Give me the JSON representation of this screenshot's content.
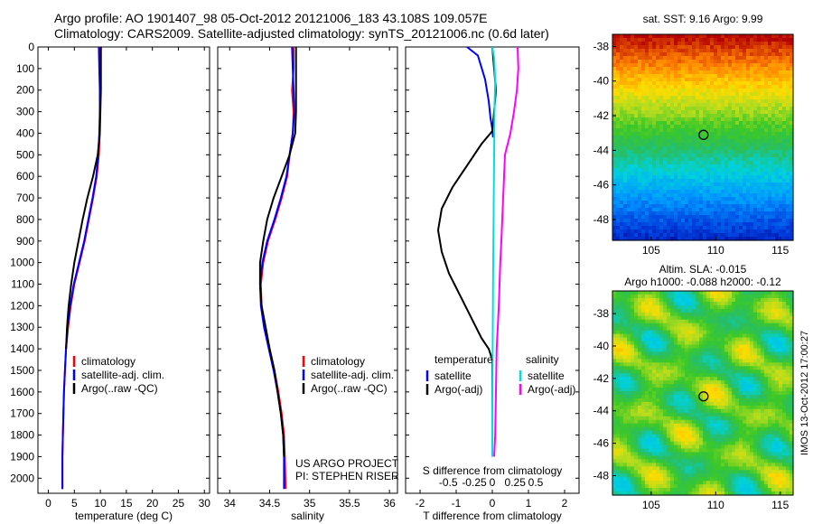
{
  "header": {
    "line1": "Argo profile: AO 1901407_98 05-Oct-2012 20121006_183 43.108S 109.057E",
    "line2": "Climatology: CARS2009. Satellite-adjusted climatology: synTS_20121006.nc (0.6d later)"
  },
  "side_label": "IMOS 13-Oct-2012 17:00:27",
  "credit": {
    "line1": "US ARGO PROJECT",
    "line2": "PI: STEPHEN RISER"
  },
  "colors": {
    "climatology": "#ff0000",
    "satellite": "#0000ff",
    "argo": "#000000",
    "satellite_s": "#00e0e0",
    "argo_s": "#ff00ff"
  },
  "chart_data": [
    {
      "type": "line",
      "xlabel": "temperature (deg C)",
      "ylabel": "",
      "xlim": [
        -2,
        31
      ],
      "ylim": [
        2070,
        0
      ],
      "xticks": [
        0,
        5,
        10,
        15,
        20,
        25,
        30
      ],
      "yticks": [
        0,
        100,
        200,
        300,
        400,
        500,
        600,
        700,
        800,
        900,
        1000,
        1100,
        1200,
        1300,
        1400,
        1500,
        1600,
        1700,
        1800,
        1900,
        2000
      ],
      "legend": {
        "placement": "lower-middle",
        "entries": [
          "climatology",
          "satellite-adj. clim.",
          "Argo(..raw -QC)"
        ]
      },
      "series": [
        {
          "name": "climatology",
          "color": "#ff0000",
          "x": [
            10.1,
            10.0,
            10.0,
            9.9,
            9.9,
            9.7,
            9.3,
            8.6,
            7.8,
            7.0,
            6.0,
            5.0,
            4.3,
            3.8,
            3.4,
            3.2,
            3.0,
            2.9,
            2.8,
            2.7,
            2.7
          ],
          "y": [
            0,
            100,
            200,
            300,
            400,
            500,
            600,
            700,
            800,
            900,
            1000,
            1100,
            1200,
            1300,
            1400,
            1500,
            1600,
            1700,
            1800,
            1900,
            2050
          ]
        },
        {
          "name": "satellite-adj. clim.",
          "color": "#0000ff",
          "x": [
            9.7,
            9.8,
            9.9,
            9.9,
            9.8,
            9.6,
            9.2,
            8.5,
            7.7,
            6.9,
            5.9,
            4.9,
            4.2,
            3.7,
            3.4,
            3.2,
            3.0,
            2.9,
            2.8,
            2.7,
            2.7
          ],
          "y": [
            0,
            100,
            200,
            300,
            400,
            500,
            600,
            700,
            800,
            900,
            1000,
            1100,
            1200,
            1300,
            1400,
            1500,
            1600,
            1700,
            1800,
            1900,
            2050
          ]
        },
        {
          "name": "Argo(..raw -QC)",
          "color": "#000000",
          "x": [
            10.1,
            10.1,
            10.1,
            10.0,
            9.9,
            9.5,
            8.6,
            7.5,
            6.6,
            5.8,
            5.0,
            4.4,
            3.9,
            3.6,
            3.4
          ],
          "y": [
            0,
            100,
            200,
            300,
            400,
            500,
            600,
            700,
            800,
            900,
            1000,
            1100,
            1200,
            1300,
            1400
          ]
        }
      ]
    },
    {
      "type": "line",
      "xlabel": "salinity",
      "ylabel": "",
      "xlim": [
        33.85,
        36.1
      ],
      "ylim": [
        2070,
        0
      ],
      "xticks": [
        34,
        34.5,
        35,
        35.5,
        36
      ],
      "legend": {
        "placement": "lower-middle",
        "entries": [
          "climatology",
          "satellite-adj. clim.",
          "Argo(..raw -QC)"
        ]
      },
      "series": [
        {
          "name": "climatology",
          "color": "#ff0000",
          "x": [
            34.8,
            34.8,
            34.78,
            34.8,
            34.79,
            34.75,
            34.72,
            34.65,
            34.57,
            34.48,
            34.42,
            34.39,
            34.4,
            34.44,
            34.5,
            34.56,
            34.61,
            34.65,
            34.68,
            34.69,
            34.7
          ],
          "y": [
            0,
            100,
            200,
            300,
            400,
            500,
            600,
            700,
            800,
            900,
            1000,
            1100,
            1200,
            1300,
            1400,
            1500,
            1600,
            1700,
            1800,
            1900,
            2050
          ]
        },
        {
          "name": "satellite-adj. clim.",
          "color": "#0000ff",
          "x": [
            34.78,
            34.79,
            34.8,
            34.81,
            34.79,
            34.75,
            34.71,
            34.64,
            34.56,
            34.47,
            34.41,
            34.38,
            34.39,
            34.43,
            34.49,
            34.55,
            34.6,
            34.64,
            34.67,
            34.68,
            34.68
          ],
          "y": [
            0,
            100,
            200,
            300,
            400,
            500,
            600,
            700,
            800,
            900,
            1000,
            1100,
            1200,
            1300,
            1400,
            1500,
            1600,
            1700,
            1800,
            1900,
            2050
          ]
        },
        {
          "name": "Argo(..raw -QC)",
          "color": "#000000",
          "x": [
            34.83,
            34.83,
            34.83,
            34.83,
            34.82,
            34.75,
            34.65,
            34.55,
            34.47,
            34.42,
            34.38,
            34.38,
            34.4,
            34.45,
            34.5,
            34.56,
            34.6,
            34.64,
            34.67,
            34.68
          ],
          "y": [
            0,
            100,
            200,
            300,
            400,
            500,
            600,
            700,
            800,
            900,
            1000,
            1100,
            1200,
            1300,
            1400,
            1500,
            1600,
            1700,
            1800,
            1900
          ]
        }
      ]
    },
    {
      "type": "line",
      "xlabel": "T difference from climatology",
      "title": "S difference from climatology",
      "xlim": [
        -2.4,
        2.4
      ],
      "ylim": [
        2070,
        0
      ],
      "xticks_T": [
        -2,
        -1,
        0,
        1,
        2
      ],
      "xticks_S": [
        "-0.5",
        "-0.25",
        "0",
        "0.25",
        "0.5"
      ],
      "legend": {
        "placement": "lower-middle",
        "groups": [
          {
            "label": "temperature",
            "entries": [
              "satellite",
              "Argo(-adj)"
            ]
          },
          {
            "label": "salinity",
            "entries": [
              "satellite",
              "Argo(-adj)"
            ]
          }
        ]
      },
      "series": [
        {
          "name": "temperature satellite",
          "color": "#0000ff",
          "x": [
            -0.7,
            -0.4,
            -0.2,
            -0.1,
            -0.05,
            0,
            0.02
          ],
          "y": [
            0,
            40,
            150,
            250,
            330,
            380,
            420
          ]
        },
        {
          "name": "temperature Argo(-adj)",
          "color": "#000000",
          "x": [
            0,
            0.05,
            0.1,
            0.05,
            0,
            -0.3,
            -0.7,
            -1.1,
            -1.4,
            -1.5,
            -1.4,
            -1.2,
            -0.9,
            -0.6,
            -0.3,
            -0.1,
            0,
            0,
            0,
            0
          ],
          "y": [
            0,
            100,
            200,
            300,
            390,
            450,
            550,
            650,
            750,
            850,
            950,
            1050,
            1150,
            1250,
            1350,
            1400,
            1450,
            1600,
            1800,
            1900
          ]
        },
        {
          "name": "salinity satellite",
          "color": "#00e0e0",
          "x": [
            0,
            0.05,
            0.08,
            0.06,
            0.05,
            0.04,
            0.03,
            0.02,
            0.01,
            0,
            0
          ],
          "y": [
            0,
            50,
            150,
            300,
            500,
            700,
            900,
            1100,
            1400,
            1700,
            1900
          ]
        },
        {
          "name": "salinity Argo(-adj)",
          "color": "#ff00ff",
          "x": [
            0.7,
            0.72,
            0.68,
            0.6,
            0.5,
            0.35,
            0.3,
            0.25,
            0.22,
            0.2,
            0.18,
            0.15,
            0.12,
            0.1,
            0.08,
            0.05
          ],
          "y": [
            0,
            100,
            200,
            300,
            400,
            500,
            700,
            900,
            1000,
            1100,
            1200,
            1300,
            1400,
            1600,
            1800,
            1900
          ]
        }
      ]
    },
    {
      "type": "heatmap",
      "title": "sat. SST: 9.16  Argo: 9.99",
      "xlim": [
        102,
        116
      ],
      "ylim": [
        -49.2,
        -37.3
      ],
      "xticks": [
        105,
        110,
        115
      ],
      "yticks": [
        -38,
        -40,
        -42,
        -44,
        -46,
        -48
      ],
      "marker": {
        "lon": 109.057,
        "lat": -43.108
      }
    },
    {
      "type": "heatmap",
      "title": "Altim. SLA: -0.015",
      "subtitle": "Argo h1000: -0.088  h2000: -0.12",
      "xlim": [
        102,
        116
      ],
      "ylim": [
        -49.2,
        -36.6
      ],
      "xticks": [
        105,
        110,
        115
      ],
      "yticks": [
        -38,
        -40,
        -42,
        -44,
        -46,
        -48
      ],
      "marker": {
        "lon": 109.057,
        "lat": -43.108
      }
    }
  ]
}
